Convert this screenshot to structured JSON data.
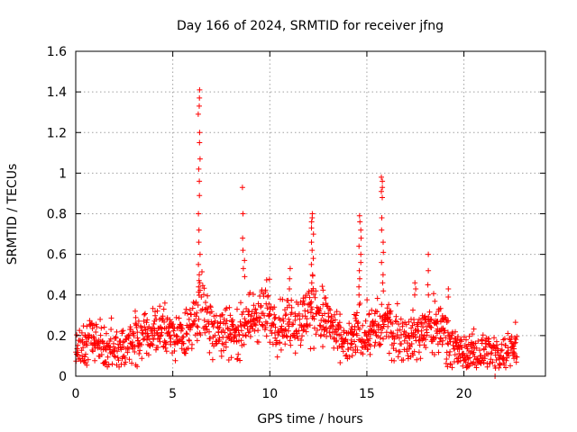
{
  "chart_data": {
    "type": "scatter",
    "title": "Day 166 of 2024, SRMTID for receiver jfng",
    "xlabel": "GPS time / hours",
    "ylabel": "SRMTID / TECUs",
    "xlim": [
      0,
      24.2
    ],
    "ylim": [
      0,
      1.6
    ],
    "xticks": [
      0,
      5,
      10,
      15,
      20
    ],
    "xtick_labels": [
      "0",
      "5",
      "10",
      "15",
      "20"
    ],
    "yticks": [
      0,
      0.2,
      0.4,
      0.6,
      0.8,
      1.0,
      1.2,
      1.4,
      1.6
    ],
    "ytick_labels": [
      "0",
      "0.2",
      "0.4",
      "0.6",
      "0.8",
      "1",
      "1.2",
      "1.4",
      "1.6"
    ],
    "grid": true,
    "marker": "plus",
    "color": "#ff0000",
    "baseline": [
      [
        0,
        0.14
      ],
      [
        0.5,
        0.15
      ],
      [
        1.0,
        0.17
      ],
      [
        1.5,
        0.13
      ],
      [
        2.0,
        0.16
      ],
      [
        2.5,
        0.15
      ],
      [
        3.0,
        0.17
      ],
      [
        3.5,
        0.21
      ],
      [
        4.0,
        0.21
      ],
      [
        4.5,
        0.24
      ],
      [
        5.0,
        0.19
      ],
      [
        5.5,
        0.18
      ],
      [
        6.0,
        0.26
      ],
      [
        6.5,
        0.33
      ],
      [
        7.0,
        0.26
      ],
      [
        7.5,
        0.21
      ],
      [
        8.0,
        0.23
      ],
      [
        8.5,
        0.22
      ],
      [
        9.0,
        0.27
      ],
      [
        9.5,
        0.31
      ],
      [
        10.0,
        0.3
      ],
      [
        10.5,
        0.25
      ],
      [
        11.0,
        0.28
      ],
      [
        11.5,
        0.25
      ],
      [
        12.0,
        0.32
      ],
      [
        12.5,
        0.31
      ],
      [
        13.0,
        0.27
      ],
      [
        13.5,
        0.18
      ],
      [
        14.0,
        0.14
      ],
      [
        14.5,
        0.22
      ],
      [
        15.0,
        0.22
      ],
      [
        15.5,
        0.23
      ],
      [
        16.0,
        0.26
      ],
      [
        16.5,
        0.21
      ],
      [
        17.0,
        0.19
      ],
      [
        17.5,
        0.2
      ],
      [
        18.0,
        0.22
      ],
      [
        18.5,
        0.25
      ],
      [
        19.0,
        0.23
      ],
      [
        19.5,
        0.14
      ],
      [
        20.0,
        0.11
      ],
      [
        20.5,
        0.12
      ],
      [
        21.0,
        0.13
      ],
      [
        21.5,
        0.1
      ],
      [
        22.0,
        0.1
      ],
      [
        22.5,
        0.16
      ],
      [
        22.75,
        0.15
      ]
    ],
    "spikes": [
      {
        "x": 6.35,
        "values": [
          1.41,
          1.37,
          1.33,
          1.29,
          1.2,
          1.15,
          1.07,
          1.02,
          0.96,
          0.89,
          0.8,
          0.72,
          0.66,
          0.6,
          0.55,
          0.5,
          0.46,
          0.44
        ]
      },
      {
        "x": 8.65,
        "values": [
          0.93,
          0.8,
          0.68,
          0.62,
          0.57,
          0.53,
          0.49
        ]
      },
      {
        "x": 12.2,
        "values": [
          0.8,
          0.78,
          0.76,
          0.73,
          0.7,
          0.66,
          0.62,
          0.58,
          0.55,
          0.5,
          0.46,
          0.42
        ]
      },
      {
        "x": 14.65,
        "values": [
          0.79,
          0.76,
          0.72,
          0.68,
          0.64,
          0.6,
          0.56,
          0.52,
          0.48,
          0.44,
          0.4
        ]
      },
      {
        "x": 15.8,
        "values": [
          0.98,
          0.96,
          0.93,
          0.91,
          0.88,
          0.78,
          0.72,
          0.66,
          0.61,
          0.56,
          0.5,
          0.46,
          0.42
        ]
      },
      {
        "x": 18.15,
        "values": [
          0.6,
          0.52,
          0.45,
          0.4
        ]
      },
      {
        "x": 17.5,
        "values": [
          0.46,
          0.43,
          0.4
        ]
      },
      {
        "x": 11.0,
        "values": [
          0.53,
          0.48,
          0.43
        ]
      },
      {
        "x": 4.55,
        "values": [
          0.36,
          0.33
        ]
      },
      {
        "x": 19.25,
        "values": [
          0.43,
          0.39
        ]
      },
      {
        "x": 21.6,
        "values": [
          0.0,
          0.04
        ]
      }
    ]
  }
}
